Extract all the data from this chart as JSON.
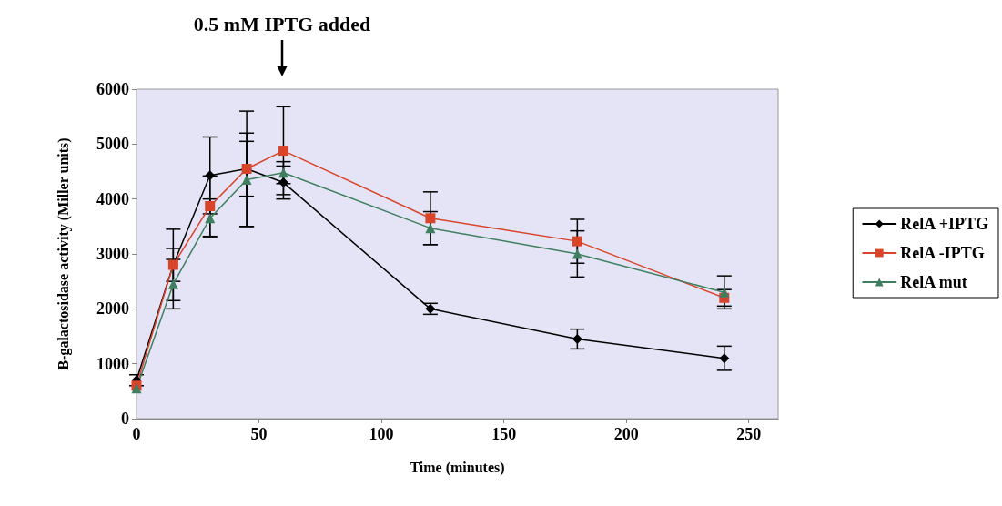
{
  "chart_data": {
    "type": "line",
    "xlabel": "Time (minutes)",
    "ylabel": "B-galactosidase activity (Miller units)",
    "x": [
      0,
      15,
      30,
      45,
      60,
      120,
      180,
      240
    ],
    "series": [
      {
        "name": "RelA +IPTG",
        "color": "#000000",
        "marker": "diamond",
        "values": [
          700,
          2800,
          4430,
          4550,
          4300,
          2000,
          1450,
          1100
        ],
        "errors": [
          100,
          300,
          700,
          500,
          300,
          100,
          180,
          220
        ]
      },
      {
        "name": "RelA -IPTG",
        "color": "#d9452b",
        "marker": "square",
        "values": [
          600,
          2800,
          3870,
          4550,
          4880,
          3650,
          3230,
          2200
        ],
        "errors": [
          null,
          650,
          550,
          1050,
          800,
          480,
          400,
          150
        ]
      },
      {
        "name": "RelA mut",
        "color": "#3f7f5f",
        "marker": "triangle",
        "values": [
          550,
          2450,
          3650,
          4350,
          4480,
          3470,
          3000,
          2300
        ],
        "errors": [
          null,
          450,
          350,
          850,
          200,
          300,
          420,
          300
        ]
      }
    ],
    "annotations": [
      "0.5 mM IPTG added"
    ],
    "xlim": [
      0,
      262
    ],
    "xticks": [
      0,
      50,
      100,
      150,
      200,
      250
    ],
    "ylim": [
      0,
      6000
    ],
    "yticks": [
      0,
      1000,
      2000,
      3000,
      4000,
      5000,
      6000
    ],
    "grid": false,
    "legend": "right",
    "line_style": "solid"
  }
}
